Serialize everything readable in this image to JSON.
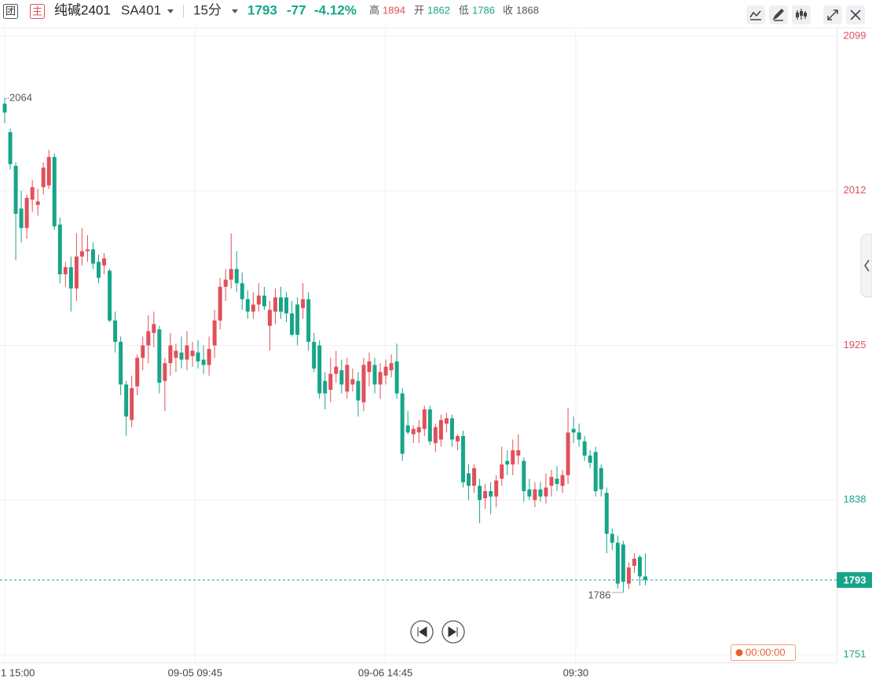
{
  "header": {
    "tag_group": "团",
    "tag_main": "主",
    "name": "纯碱2401",
    "code": "SA401",
    "period": "15分",
    "price": "1793",
    "change": "-77",
    "change_pct": "-4.12%",
    "high_label": "高",
    "high": "1894",
    "open_label": "开",
    "open": "1862",
    "low_label": "低",
    "low": "1786",
    "close_label": "收",
    "close": 1868
  },
  "chart_data": {
    "type": "candlestick",
    "up_color": "#e0505a",
    "down_color": "#17a589",
    "ylim": [
      1746.6,
      2103.4
    ],
    "yticks": [
      1751,
      1838,
      1925,
      2012,
      2099
    ],
    "grid": true,
    "xtick_labels": [
      "1 15:00",
      "09-05 09:45",
      "09-06 14:45",
      "09:30"
    ],
    "countdown": "00:00:00",
    "ohlc": [
      [
        2061,
        2064,
        2050,
        2056
      ],
      [
        2045,
        2047,
        2024,
        2027
      ],
      [
        2026,
        2028,
        1973,
        1999
      ],
      [
        2002,
        2012,
        1983,
        1991
      ],
      [
        1991,
        2010,
        1985,
        2008
      ],
      [
        2007,
        2018,
        2000,
        2014
      ],
      [
        2004,
        2013,
        1998,
        2006
      ],
      [
        2014,
        2028,
        2010,
        2025
      ],
      [
        2015,
        2035,
        2013,
        2031
      ],
      [
        2031,
        2033,
        1990,
        1992
      ],
      [
        1993,
        1997,
        1960,
        1965
      ],
      [
        1965,
        1972,
        1958,
        1969
      ],
      [
        1969,
        1975,
        1944,
        1957
      ],
      [
        1957,
        1988,
        1950,
        1975
      ],
      [
        1975,
        1991,
        1970,
        1978
      ],
      [
        1978,
        1987,
        1972,
        1979
      ],
      [
        1979,
        1983,
        1968,
        1971
      ],
      [
        1972,
        1976,
        1960,
        1963
      ],
      [
        1970,
        1977,
        1965,
        1974
      ],
      [
        1967,
        1968,
        1938,
        1939
      ],
      [
        1939,
        1944,
        1921,
        1927
      ],
      [
        1927,
        1930,
        1897,
        1903
      ],
      [
        1903,
        1905,
        1874,
        1885
      ],
      [
        1883,
        1908,
        1879,
        1901
      ],
      [
        1902,
        1920,
        1897,
        1918
      ],
      [
        1918,
        1930,
        1911,
        1925
      ],
      [
        1925,
        1942,
        1915,
        1933
      ],
      [
        1932,
        1944,
        1924,
        1937
      ],
      [
        1934,
        1936,
        1898,
        1904
      ],
      [
        1905,
        1918,
        1888,
        1915
      ],
      [
        1915,
        1932,
        1908,
        1925
      ],
      [
        1918,
        1926,
        1910,
        1922
      ],
      [
        1921,
        1930,
        1912,
        1917
      ],
      [
        1917,
        1933,
        1911,
        1925
      ],
      [
        1919,
        1927,
        1913,
        1922
      ],
      [
        1921,
        1928,
        1912,
        1916
      ],
      [
        1917,
        1925,
        1909,
        1914
      ],
      [
        1914,
        1930,
        1908,
        1923
      ],
      [
        1925,
        1945,
        1918,
        1939
      ],
      [
        1939,
        1963,
        1934,
        1958
      ],
      [
        1958,
        1968,
        1950,
        1962
      ],
      [
        1962,
        1988,
        1957,
        1968
      ],
      [
        1968,
        1978,
        1955,
        1960
      ],
      [
        1960,
        1966,
        1945,
        1951
      ],
      [
        1951,
        1956,
        1940,
        1944
      ],
      [
        1944,
        1955,
        1940,
        1948
      ],
      [
        1948,
        1960,
        1944,
        1953
      ],
      [
        1953,
        1958,
        1945,
        1947
      ],
      [
        1936,
        1950,
        1922,
        1945
      ],
      [
        1944,
        1957,
        1937,
        1952
      ],
      [
        1952,
        1958,
        1940,
        1944
      ],
      [
        1952,
        1955,
        1938,
        1943
      ],
      [
        1943,
        1950,
        1930,
        1931
      ],
      [
        1948,
        1952,
        1925,
        1931
      ],
      [
        1946,
        1960,
        1940,
        1951
      ],
      [
        1951,
        1955,
        1922,
        1927
      ],
      [
        1927,
        1932,
        1910,
        1912
      ],
      [
        1925,
        1928,
        1895,
        1898
      ],
      [
        1905,
        1910,
        1889,
        1898
      ],
      [
        1900,
        1918,
        1893,
        1909
      ],
      [
        1909,
        1922,
        1904,
        1913
      ],
      [
        1911,
        1917,
        1898,
        1903
      ],
      [
        1899,
        1918,
        1895,
        1914
      ],
      [
        1903,
        1912,
        1899,
        1906
      ],
      [
        1905,
        1910,
        1885,
        1894
      ],
      [
        1893,
        1918,
        1888,
        1914
      ],
      [
        1910,
        1921,
        1902,
        1916
      ],
      [
        1914,
        1918,
        1898,
        1903
      ],
      [
        1903,
        1915,
        1895,
        1910
      ],
      [
        1908,
        1917,
        1903,
        1913
      ],
      [
        1911,
        1920,
        1907,
        1915
      ],
      [
        1916,
        1926,
        1895,
        1898
      ],
      [
        1898,
        1901,
        1860,
        1864
      ],
      [
        1880,
        1888,
        1875,
        1876
      ],
      [
        1875,
        1880,
        1870,
        1878
      ],
      [
        1876,
        1883,
        1870,
        1879
      ],
      [
        1878,
        1891,
        1874,
        1889
      ],
      [
        1889,
        1891,
        1869,
        1871
      ],
      [
        1870,
        1881,
        1865,
        1879
      ],
      [
        1872,
        1886,
        1868,
        1883
      ],
      [
        1881,
        1887,
        1876,
        1884
      ],
      [
        1884,
        1886,
        1868,
        1872
      ],
      [
        1871,
        1875,
        1866,
        1874
      ],
      [
        1874,
        1877,
        1845,
        1848
      ],
      [
        1853,
        1858,
        1838,
        1846
      ],
      [
        1846,
        1858,
        1842,
        1856
      ],
      [
        1846,
        1850,
        1825,
        1838
      ],
      [
        1839,
        1847,
        1833,
        1843
      ],
      [
        1843,
        1848,
        1830,
        1840
      ],
      [
        1840,
        1852,
        1834,
        1849
      ],
      [
        1850,
        1868,
        1846,
        1858
      ],
      [
        1860,
        1866,
        1852,
        1858
      ],
      [
        1858,
        1872,
        1852,
        1866
      ],
      [
        1863,
        1875,
        1858,
        1866
      ],
      [
        1860,
        1862,
        1837,
        1843
      ],
      [
        1844,
        1850,
        1838,
        1840
      ],
      [
        1838,
        1848,
        1834,
        1844
      ],
      [
        1844,
        1848,
        1837,
        1840
      ],
      [
        1840,
        1853,
        1836,
        1845
      ],
      [
        1846,
        1855,
        1840,
        1851
      ],
      [
        1850,
        1857,
        1843,
        1847
      ],
      [
        1846,
        1855,
        1842,
        1852
      ],
      [
        1852,
        1890,
        1847,
        1876
      ],
      [
        1878,
        1885,
        1870,
        1876
      ],
      [
        1876,
        1881,
        1868,
        1872
      ],
      [
        1871,
        1874,
        1860,
        1863
      ],
      [
        1863,
        1866,
        1856,
        1859
      ],
      [
        1865,
        1868,
        1840,
        1843
      ],
      [
        1856,
        1858,
        1840,
        1844
      ],
      [
        1842,
        1845,
        1808,
        1819
      ],
      [
        1819,
        1822,
        1810,
        1814
      ],
      [
        1814,
        1818,
        1788,
        1791
      ],
      [
        1813,
        1815,
        1786,
        1792
      ],
      [
        1791,
        1803,
        1788,
        1800
      ],
      [
        1801,
        1808,
        1797,
        1805
      ],
      [
        1806,
        1807,
        1790,
        1795
      ],
      [
        1795,
        1808,
        1790,
        1793
      ]
    ]
  }
}
